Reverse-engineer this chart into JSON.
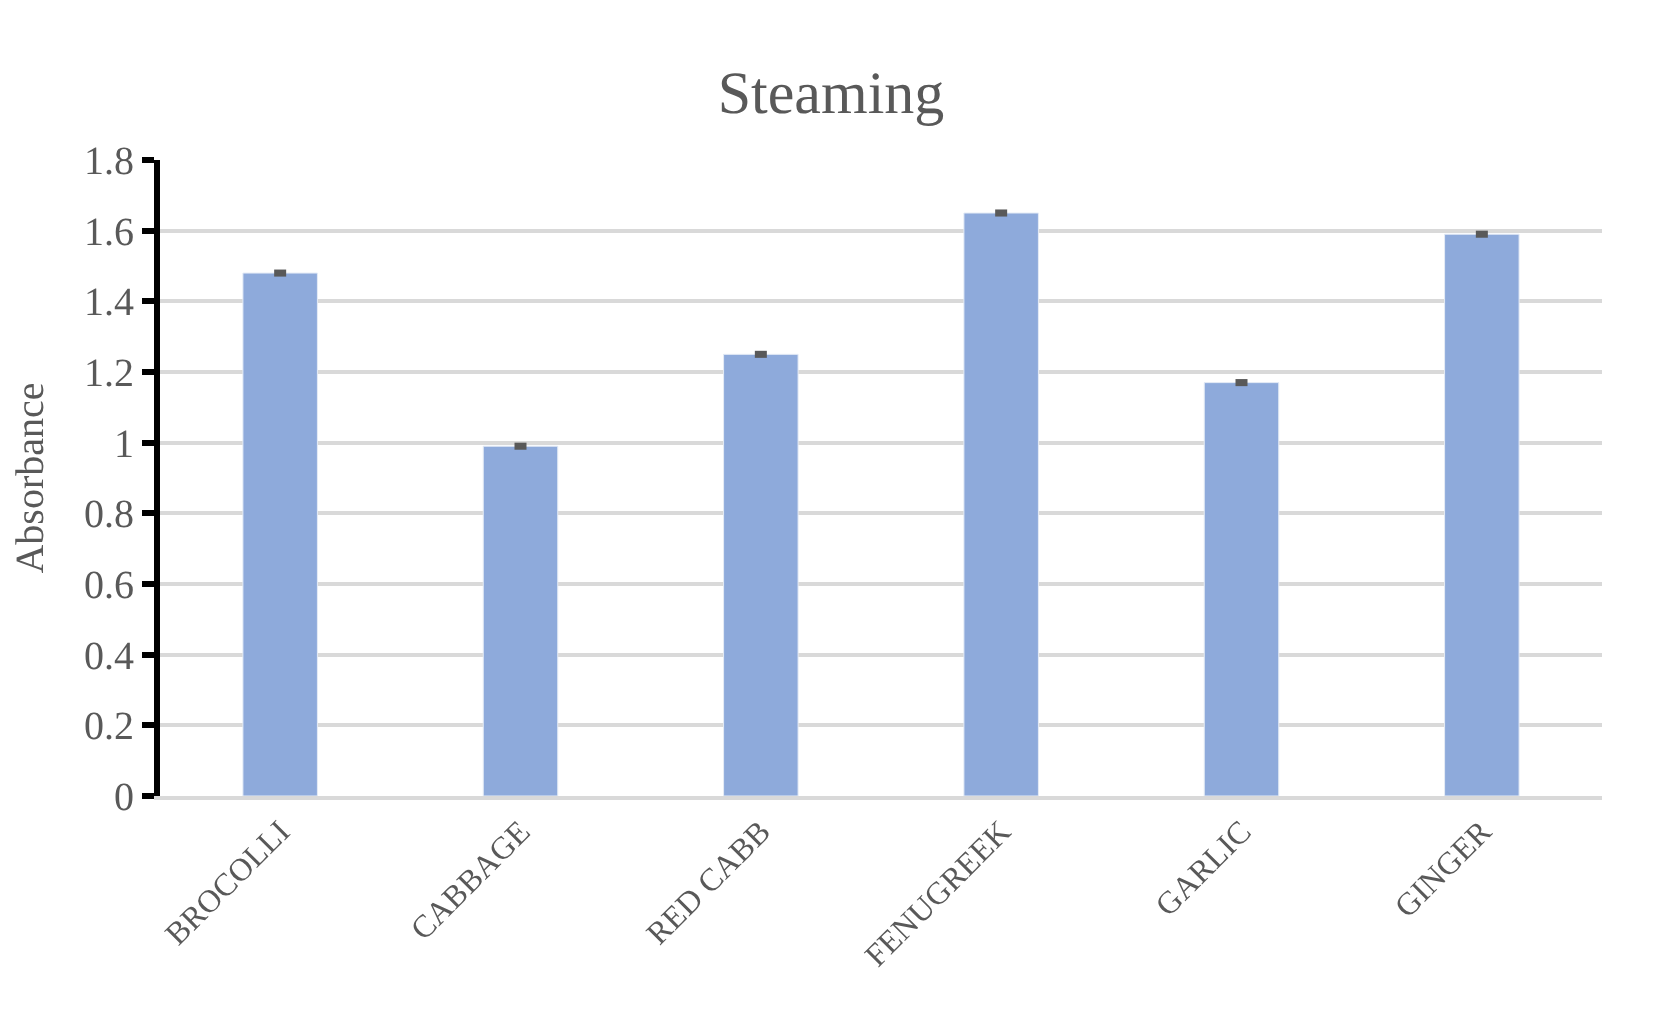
{
  "chart_data": {
    "type": "bar",
    "title": "Steaming",
    "ylabel": "Absorbance",
    "categories": [
      "BROCOLLI",
      "CABBAGE",
      "RED CABB",
      "FENUGREEK",
      "GARLIC",
      "GINGER"
    ],
    "values": [
      1.48,
      0.99,
      1.25,
      1.65,
      1.17,
      1.59
    ],
    "errors": [
      0.01,
      0.01,
      0.01,
      0.01,
      0.01,
      0.01
    ],
    "color": "#8eaadb",
    "ylim": [
      0,
      1.8
    ],
    "yticks": [
      {
        "value": 0,
        "label": "0"
      },
      {
        "value": 0.2,
        "label": "0.2"
      },
      {
        "value": 0.4,
        "label": "0.4"
      },
      {
        "value": 0.6,
        "label": "0.6"
      },
      {
        "value": 0.8,
        "label": "0.8"
      },
      {
        "value": 1,
        "label": "1"
      },
      {
        "value": 1.2,
        "label": "1.2"
      },
      {
        "value": 1.4,
        "label": "1.4"
      },
      {
        "value": 1.6,
        "label": "1.6"
      },
      {
        "value": 1.8,
        "label": "1.8"
      }
    ],
    "grid": "y",
    "legend": false
  }
}
